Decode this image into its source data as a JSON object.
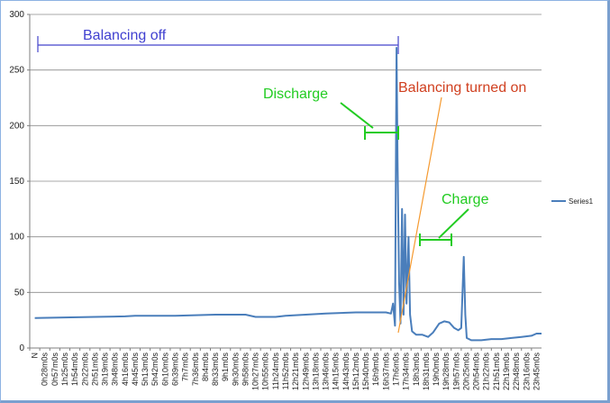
{
  "chart_data": {
    "type": "line",
    "title": "",
    "xlabel": "",
    "ylabel": "",
    "ylim": [
      0,
      300
    ],
    "yticks": [
      0,
      50,
      100,
      150,
      200,
      250,
      300
    ],
    "grid": true,
    "legend_position": "right",
    "x_categories": [
      "N",
      "0h28m0s",
      "0h57m0s",
      "1h25m0s",
      "1h54m0s",
      "2h22m0s",
      "2h51m0s",
      "3h19m0s",
      "3h48m0s",
      "4h16m0s",
      "4h45m0s",
      "5h13m0s",
      "5h42m0s",
      "6h10m0s",
      "6h39m0s",
      "7h7m0s",
      "7h36m0s",
      "8h4m0s",
      "8h33m0s",
      "9h1m0s",
      "9h30m0s",
      "9h58m0s",
      "10h27m0s",
      "10h55m0s",
      "11h24m0s",
      "11h52m0s",
      "12h21m0s",
      "12h49m0s",
      "13h18m0s",
      "13h46m0s",
      "14h15m0s",
      "14h43m0s",
      "15h12m0s",
      "15h40m0s",
      "16h9m0s",
      "16h37m0s",
      "17h6m0s",
      "17h34m0s",
      "18h3m0s",
      "18h31m0s",
      "19h0m0s",
      "19h28m0s",
      "19h57m0s",
      "20h25m0s",
      "20h54m0s",
      "21h22m0s",
      "21h51m0s",
      "22h19m0s",
      "22h48m0s",
      "23h16m0s",
      "23h45m0s"
    ],
    "series": [
      {
        "name": "Series1",
        "color": "#4a7ebb",
        "points": [
          [
            0,
            27
          ],
          [
            3,
            27.5
          ],
          [
            6,
            28
          ],
          [
            9,
            28.5
          ],
          [
            10,
            29
          ],
          [
            14,
            29
          ],
          [
            18,
            30
          ],
          [
            21,
            30
          ],
          [
            22,
            28
          ],
          [
            24,
            28
          ],
          [
            25,
            29
          ],
          [
            27,
            30
          ],
          [
            29,
            31
          ],
          [
            32,
            32
          ],
          [
            34,
            32
          ],
          [
            35,
            32
          ],
          [
            35.5,
            31
          ],
          [
            35.7,
            40
          ],
          [
            35.9,
            20
          ],
          [
            36.05,
            270
          ],
          [
            36.15,
            170
          ],
          [
            36.3,
            60
          ],
          [
            36.45,
            22
          ],
          [
            36.6,
            125
          ],
          [
            36.75,
            30
          ],
          [
            36.9,
            120
          ],
          [
            37.05,
            40
          ],
          [
            37.25,
            100
          ],
          [
            37.4,
            30
          ],
          [
            37.6,
            15
          ],
          [
            38,
            12
          ],
          [
            38.6,
            12
          ],
          [
            39.2,
            10
          ],
          [
            39.7,
            14
          ],
          [
            40.3,
            22
          ],
          [
            40.8,
            24
          ],
          [
            41.3,
            23
          ],
          [
            41.8,
            18
          ],
          [
            42.2,
            16
          ],
          [
            42.5,
            18
          ],
          [
            42.75,
            82
          ],
          [
            42.9,
            30
          ],
          [
            43.05,
            9
          ],
          [
            43.5,
            7
          ],
          [
            44.5,
            7
          ],
          [
            45.5,
            8
          ],
          [
            46.5,
            8
          ],
          [
            47.5,
            9
          ],
          [
            48.5,
            10
          ],
          [
            49.5,
            11
          ],
          [
            50,
            13
          ],
          [
            50.5,
            13
          ]
        ]
      }
    ],
    "annotations": [
      {
        "text": "Balancing off",
        "color": "#4040d0"
      },
      {
        "text": "Discharge",
        "color": "#22cc22"
      },
      {
        "text": "Balancing turned on",
        "color": "#d04020"
      },
      {
        "text": "Charge",
        "color": "#22cc22"
      }
    ]
  }
}
